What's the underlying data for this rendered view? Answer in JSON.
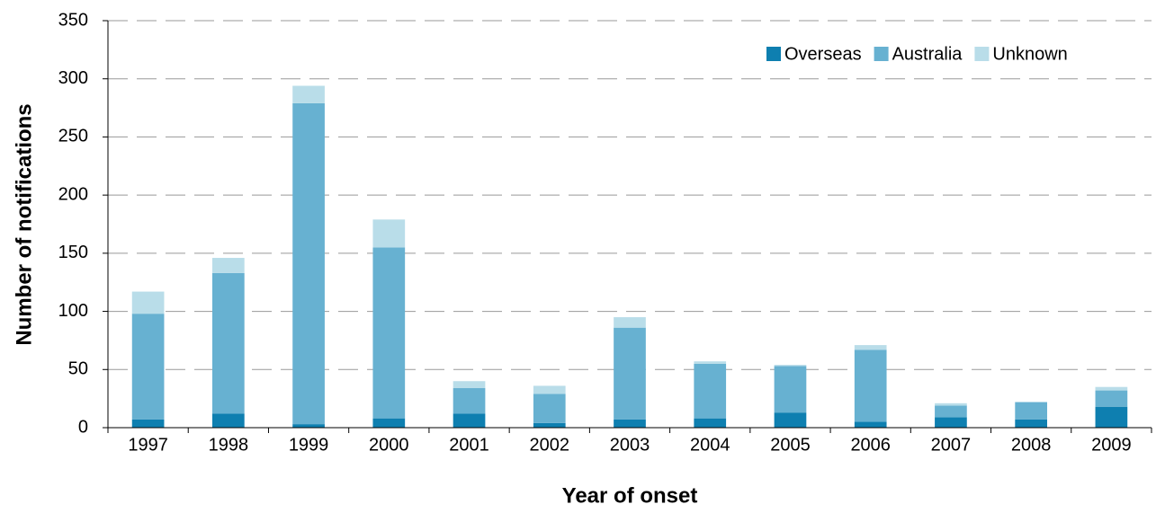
{
  "chart_data": {
    "type": "stacked_bar",
    "x_label": "Year of onset",
    "y_label": "Number of notifications",
    "categories": [
      "1997",
      "1998",
      "1999",
      "2000",
      "2001",
      "2002",
      "2003",
      "2004",
      "2005",
      "2006",
      "2007",
      "2008",
      "2009"
    ],
    "series": [
      {
        "name": "Overseas",
        "color": "#0e7fb0",
        "values": [
          7,
          12,
          3,
          8,
          12,
          4,
          7,
          8,
          13,
          5,
          9,
          7,
          18
        ]
      },
      {
        "name": "Australia",
        "color": "#67b1d1",
        "values": [
          91,
          121,
          276,
          147,
          22,
          25,
          79,
          47,
          40,
          62,
          10,
          15,
          14
        ]
      },
      {
        "name": "Unknown",
        "color": "#b9dde9",
        "values": [
          19,
          13,
          15,
          24,
          6,
          7,
          9,
          2,
          1,
          4,
          2,
          0,
          3
        ]
      }
    ],
    "ylim": [
      0,
      350
    ],
    "yticks": [
      0,
      50,
      100,
      150,
      200,
      250,
      300,
      350
    ],
    "grid": true,
    "legend": "top-right"
  }
}
